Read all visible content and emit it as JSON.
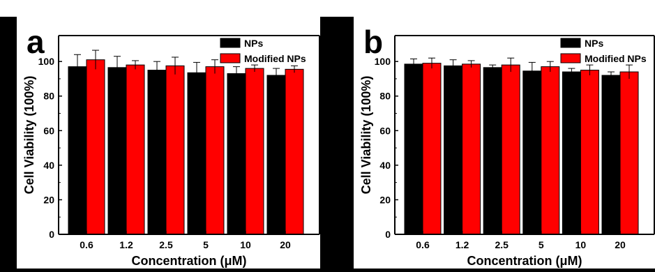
{
  "chart_data": [
    {
      "panel": "a",
      "type": "bar",
      "categories": [
        "0.6",
        "1.2",
        "2.5",
        "5",
        "10",
        "20"
      ],
      "series": [
        {
          "name": "NPs",
          "color": "#000000",
          "values": [
            97,
            96.5,
            95,
            93.5,
            93,
            92
          ],
          "errors": [
            7,
            6.5,
            5,
            6,
            4,
            4
          ]
        },
        {
          "name": "Modified NPs",
          "color": "#ff0000",
          "values": [
            101,
            98,
            97.5,
            97,
            96,
            95.5
          ],
          "errors": [
            5.5,
            2.5,
            5,
            4,
            2,
            2
          ]
        }
      ],
      "xlabel": "Concentration (μM)",
      "ylabel": "Cell Viability (100%)",
      "ylim": [
        0,
        115
      ],
      "yticks": [
        "0",
        "20",
        "40",
        "60",
        "80",
        "100"
      ],
      "legend": "top-right",
      "grid": false
    },
    {
      "panel": "b",
      "type": "bar",
      "categories": [
        "0.6",
        "1.2",
        "2.5",
        "5",
        "10",
        "20"
      ],
      "series": [
        {
          "name": "NPs",
          "color": "#000000",
          "values": [
            98.5,
            97.5,
            96.5,
            94.5,
            94,
            92
          ],
          "errors": [
            3,
            3.5,
            1.5,
            5,
            2,
            2
          ]
        },
        {
          "name": "Modified NPs",
          "color": "#ff0000",
          "values": [
            99,
            98.5,
            98,
            97,
            95,
            94
          ],
          "errors": [
            3,
            2,
            4,
            3,
            3,
            4
          ]
        }
      ],
      "xlabel": "Concentration (μM)",
      "ylabel": "Cell Viability (100%)",
      "ylim": [
        0,
        115
      ],
      "yticks": [
        "0",
        "20",
        "40",
        "60",
        "80",
        "100"
      ],
      "legend": "top-right",
      "grid": false
    }
  ]
}
